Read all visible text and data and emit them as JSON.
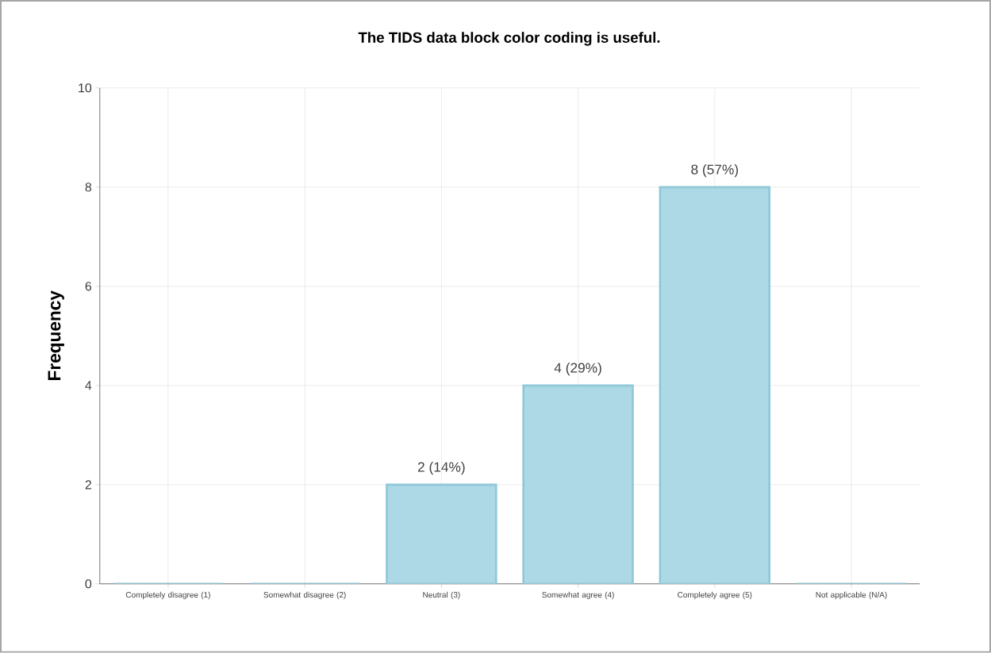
{
  "chart_data": {
    "type": "bar",
    "title": "The TIDS data block color coding is useful.",
    "ylabel": "Frequency",
    "categories": [
      "Completely disagree (1)",
      "Somewhat disagree (2)",
      "Neutral (3)",
      "Somewhat agree (4)",
      "Completely agree (5)",
      "Not applicable (N/A)"
    ],
    "values": [
      0,
      0,
      2,
      4,
      8,
      0
    ],
    "value_labels": [
      null,
      null,
      "2 (14%)",
      "4 (29%)",
      "8 (57%)",
      null
    ],
    "color": "#add8e6",
    "ylim": [
      0,
      10
    ],
    "yticks": [
      0,
      2,
      4,
      6,
      8,
      10
    ],
    "grid": true
  }
}
